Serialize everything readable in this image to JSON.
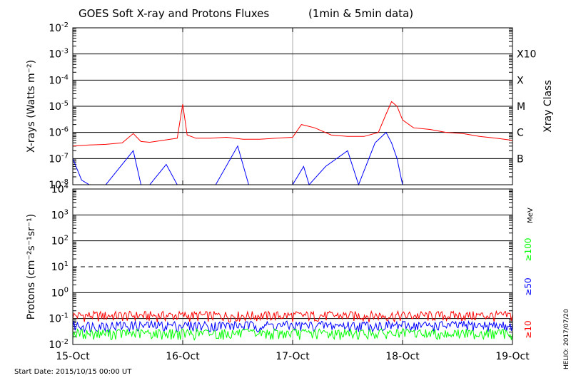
{
  "title": "GOES Soft X-ray and Protons Fluxes",
  "title_suffix": "(1min & 5min data)",
  "start_label": "Start Date: 2015/10/15 00:00 UT",
  "credit": "HELIO: 2017/07/20",
  "chart_data": [
    {
      "type": "line",
      "panel": "xray",
      "scale": "log",
      "ylim": [
        1e-08,
        0.01
      ],
      "ylabel": "X-rays (Watts m⁻²)",
      "y_ticks": [
        {
          "base": "10",
          "exp": "-2",
          "value": 0.01
        },
        {
          "base": "10",
          "exp": "-3",
          "value": 0.001
        },
        {
          "base": "10",
          "exp": "-4",
          "value": 0.0001
        },
        {
          "base": "10",
          "exp": "-5",
          "value": 1e-05
        },
        {
          "base": "10",
          "exp": "-6",
          "value": 1e-06
        },
        {
          "base": "10",
          "exp": "-7",
          "value": 1e-07
        },
        {
          "base": "10",
          "exp": "-8",
          "value": 1e-08
        }
      ],
      "right_axis_title": "Xray Class",
      "class_labels": [
        {
          "label": "X10",
          "value": 0.001
        },
        {
          "label": "X",
          "value": 0.0001
        },
        {
          "label": "M",
          "value": 1e-05
        },
        {
          "label": "C",
          "value": 1e-06
        },
        {
          "label": "B",
          "value": 1e-07
        }
      ],
      "series": [
        {
          "color": "#ff0000",
          "x": [
            0,
            0.15,
            0.3,
            0.45,
            0.55,
            0.62,
            0.7,
            0.82,
            0.95,
            1.0,
            1.04,
            1.12,
            1.25,
            1.4,
            1.55,
            1.7,
            1.85,
            2.0,
            2.08,
            2.2,
            2.35,
            2.5,
            2.65,
            2.78,
            2.85,
            2.9,
            2.95,
            3.0,
            3.1,
            3.25,
            3.4,
            3.55,
            3.7,
            3.85,
            4.0
          ],
          "y": [
            3e-07,
            3.3e-07,
            3.5e-07,
            4e-07,
            9e-07,
            4.5e-07,
            4.2e-07,
            5e-07,
            6e-07,
            1.2e-05,
            8e-07,
            6e-07,
            6e-07,
            6.5e-07,
            5.5e-07,
            5.5e-07,
            6e-07,
            6.5e-07,
            2e-06,
            1.5e-06,
            8e-07,
            7e-07,
            7e-07,
            1e-06,
            5e-06,
            1.5e-05,
            1e-05,
            3e-06,
            1.5e-06,
            1.3e-06,
            1e-06,
            9e-07,
            7e-07,
            6e-07,
            5e-07
          ]
        },
        {
          "color": "#0000ff",
          "x": [
            0,
            0.08,
            0.15,
            0.3,
            0.55,
            0.62,
            0.7,
            0.85,
            0.95,
            1.05,
            1.3,
            1.5,
            1.6,
            1.7,
            2.0,
            2.1,
            2.15,
            2.3,
            2.5,
            2.6,
            2.75,
            2.85,
            2.9,
            2.95,
            3.0,
            3.2,
            3.6,
            3.9,
            4.0
          ],
          "y": [
            1e-07,
            1.5e-08,
            1e-08,
            1e-08,
            2e-07,
            1e-08,
            1e-08,
            6e-08,
            1e-08,
            1e-08,
            1e-08,
            3e-07,
            1e-08,
            1e-08,
            1e-08,
            5e-08,
            1e-08,
            5e-08,
            2e-07,
            1e-08,
            4e-07,
            1e-06,
            4e-07,
            1e-07,
            1e-08,
            1e-08,
            1e-08,
            1e-08,
            1e-08
          ]
        }
      ]
    },
    {
      "type": "line",
      "panel": "protons",
      "scale": "log",
      "ylim": [
        0.01,
        10000
      ],
      "ylabel": "Protons (cm⁻²s⁻¹sr⁻¹)",
      "y_ticks": [
        {
          "base": "10",
          "exp": "4",
          "value": 10000
        },
        {
          "base": "10",
          "exp": "3",
          "value": 1000
        },
        {
          "base": "10",
          "exp": "2",
          "value": 100
        },
        {
          "base": "10",
          "exp": "1",
          "value": 10
        },
        {
          "base": "10",
          "exp": "0",
          "value": 1
        },
        {
          "base": "10",
          "exp": "-1",
          "value": 0.1
        },
        {
          "base": "10",
          "exp": "-2",
          "value": 0.01
        }
      ],
      "threshold": 10,
      "unit_label": "MeV",
      "series": [
        {
          "name": "≥10",
          "color": "#ff0000",
          "x": [
            0,
            4
          ],
          "y": [
            0.12,
            0.12
          ]
        },
        {
          "name": "≥50",
          "color": "#0000ff",
          "x": [
            0,
            4
          ],
          "y": [
            0.05,
            0.05
          ]
        },
        {
          "name": "≥100",
          "color": "#00ff00",
          "x": [
            0,
            4
          ],
          "y": [
            0.025,
            0.025
          ]
        }
      ]
    }
  ],
  "x_axis": {
    "range": [
      0,
      4
    ],
    "tick_labels": [
      {
        "label": "15-Oct",
        "value": 0
      },
      {
        "label": "16-Oct",
        "value": 1
      },
      {
        "label": "17-Oct",
        "value": 2
      },
      {
        "label": "18-Oct",
        "value": 3
      },
      {
        "label": "19-Oct",
        "value": 4
      }
    ]
  }
}
